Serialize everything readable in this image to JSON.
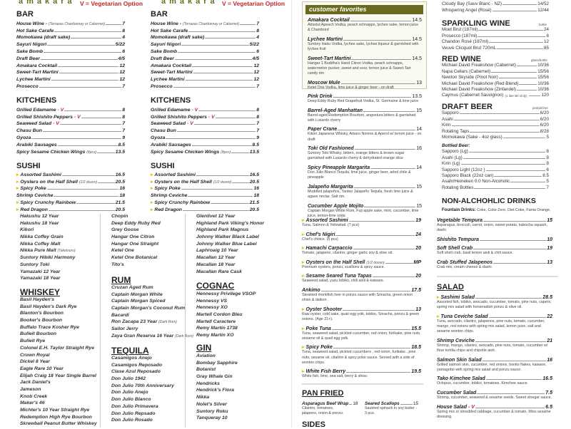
{
  "brand": {
    "logo": "amakara",
    "veg_note": "V = Vegetarian Option"
  },
  "bar": {
    "title": "BAR",
    "items": [
      {
        "name": "House Wine -",
        "note": "(Terrazas Chardonnay or Cabernet)",
        "price": "7"
      },
      {
        "name": "Hot Sake Carafe",
        "price": "8"
      },
      {
        "name": "Momokawa (draft sake)",
        "price": "4"
      },
      {
        "name": "Sayuri Nigori",
        "price": "5/22"
      },
      {
        "name": "Sake Bomb",
        "price": "6"
      },
      {
        "name": "Draft Beer",
        "price": "4/5"
      },
      {
        "name": "Amakara Cocktail",
        "price": "12"
      },
      {
        "name": "Sweet-Tart Martini",
        "price": "12"
      },
      {
        "name": "Lychee Martini",
        "price": "12"
      },
      {
        "name": "Prosecco",
        "price": "7"
      }
    ]
  },
  "kitchens": {
    "title": "KITCHENS",
    "items": [
      {
        "name": "Grilled Edamame",
        "v": "- V",
        "price": "8"
      },
      {
        "name": "Grilled Shishito Peppers",
        "v": "- V",
        "price": "8"
      },
      {
        "name": "Seaweed Salad",
        "v": "- V",
        "price": "7"
      },
      {
        "name": "Chasu Bun",
        "price": "7"
      },
      {
        "name": "Gyoza",
        "price": "9"
      },
      {
        "name": "Arabiki Sausages",
        "price": "8.5"
      },
      {
        "name": "Spicy Sesame Chicken Wings",
        "note": "(8pcs)",
        "price": "13.5"
      }
    ]
  },
  "sushi": {
    "title": "SUSHI",
    "items": [
      {
        "name": "Assorted Sashimi",
        "mark": true,
        "price": "16.5"
      },
      {
        "name": "Oysters on the Half Shell",
        "note": "(1/2 dozen)",
        "mark": true,
        "price": "20.5"
      },
      {
        "name": "Spicy Poke",
        "mark": true,
        "price": "16"
      },
      {
        "name": "Shrimp Ceviche",
        "price": "18"
      },
      {
        "name": "Spicy Crunchy Rainbow",
        "mark": true,
        "price": "21.5"
      },
      {
        "name": "Red Dragon",
        "mark": true,
        "price": "20.5"
      }
    ]
  },
  "japanese_whisky": [
    "Hakushu 12 Year",
    "Hakushu 18 Year",
    "Kikori",
    "Nikka Coffey Grain",
    "Nikka Coffey Malt",
    {
      "name": "Nikka Pure Malt",
      "note": "(Taketsuru)"
    },
    "Suntory Hibiki Harmony",
    "Suntory Toki",
    "Yamazaki 12 Year",
    "Yamazaki 18 Year"
  ],
  "whiskey": {
    "title": "WHISKEY",
    "items": [
      "Basil Hayden's",
      "Basil Hayden's Dark Rye",
      "Blanton's Bourbon",
      "Booker's Bourbon",
      "Buffalo Trace Kosher Rye",
      "Bulleit Bourbon",
      "Bulleit Rye",
      "Colonel E.H. Taylor Straight Rye",
      "Crown Royal",
      "Dickel 8 Year",
      "Eagle Rare 10 Year",
      "Elijah Craig 18 Year Single Barrel",
      "Jack Daniel's",
      "Jameson",
      "Knob Creek",
      "Maker's 46",
      "Michter's 10 Year Straight Rye",
      "Redemption High Rye Bourbon",
      "Skrewball Peanut Butter Whiskey"
    ]
  },
  "vodka": [
    "Chopin",
    "Deep Eddy Ruby Red",
    "Grey Goose",
    "Hangar One Citron",
    "Hangar One Straight",
    "Ketel One",
    "Ketel One Botanical",
    "Tito's"
  ],
  "rum": {
    "title": "RUM",
    "items": [
      "Cruzan Aged Rum",
      "Captain Morgan White",
      "Captain Morgan Spiced",
      "Captain Morgan's Coconut Rum",
      "Bacardi",
      {
        "name": "Ron Zacapa 23 Year",
        "note": "(Dark Rum)"
      },
      "Sailor Jerry",
      {
        "name": "Zaya Gran Reserva 16 Year",
        "note": "(Dark Rum)"
      }
    ]
  },
  "tequila": {
    "title": "TEQUILA",
    "items": [
      "Casamigos Anejo",
      "Casamigos Reposado",
      "Clase Azul Reposado",
      "Don Julio 1942",
      "Don Julio 70th Anniversary",
      "Don Julio Anejo",
      "Don Julio Blanco",
      "Don Julio Primavera",
      "Don Julio Repsado",
      "Don Julio Rosado"
    ]
  },
  "scotch": [
    "Glenlivet 12 Year",
    "Highland Park Viking's Honor",
    "Highland Park Magnus",
    "Johnny Walker Black Label",
    "Johnny Walker Blue Label",
    "Laphroaig 10 Year",
    "Macallan 12 Year",
    "Macallan 18 Year",
    "Macallan Rare Cask"
  ],
  "cognac": {
    "title": "COGNAC",
    "items": [
      "Hennessy Privilege VSOP",
      "Hennessy VS",
      "Hennessy XO",
      "Martell Cordon Bleu",
      "Martell Caractere",
      "Remy Martin 1738",
      "Remy Martin XO"
    ]
  },
  "gin": {
    "title": "GIN",
    "items": [
      "Aviation",
      "Bombay Sapphire",
      "Botanist",
      "Gray Whale Gin",
      "Hendricks",
      "Hendrick's Flora",
      "Nikka",
      "Nolet's Silver",
      "Suntory Roku",
      "Tanqueray 10"
    ]
  },
  "customer_favorites": {
    "title": "customer favorites",
    "items": [
      {
        "name": "Amakara Cocktail",
        "price": "14.5",
        "desc": "Absolut Apeach Vodka, peach schnapps, lychee sake, lemon juice & Chambord"
      },
      {
        "name": "Lychee Martini",
        "price": "14.5",
        "desc": "Suntory Haku Vodka, lychee sake, lychee liqueur & garnished with lychee fruit"
      },
      {
        "name": "Sweet-Tart Martini",
        "price": "14.5",
        "desc": "Hangar 1 Buddha's Hand Citron Vodka, peach schnapps, watermelon pucker, sweet and sour, lemon juice & Sweet-Tart candy rim"
      },
      {
        "name": "Moscow Mule",
        "price": "13",
        "desc": "Ketel One Vodka, lime juice & ginger beer - on draft"
      }
    ]
  },
  "cocktails": [
    {
      "name": "Pink Drink",
      "price": "13.5",
      "desc": "Deep Eddy Ruby Red Grapefruit Vodka, St. Germaine & lime juice"
    },
    {
      "name": "Barrel-Aged Manhattan",
      "price": "15",
      "desc": "Barrel-aged Redemption Bourbon, angostura bitters & garnished with Luxardo cherry"
    },
    {
      "name": "Paper Crane",
      "price": "14",
      "desc": "Kikori Japanese Whisky, Amaro Nonino & Aperol w/ lemon juice - on draft"
    },
    {
      "name": "Toki Old Fashioned",
      "price": "16",
      "desc": "Suntory Toki Whisky, bitters, orange bitters & brown sugar garnished with Luxardo cherry & dehydrated orange slice"
    },
    {
      "name": "Spicy Pineapple Margarita",
      "price": "14",
      "desc": "Don Julio Blanco Tequila, lime juice, ginger beer, arbol chile & pineapple"
    },
    {
      "name": "Jalapeño Margarita",
      "price": "15",
      "desc": "Muddled jalapeños, Tanteo Jalapeño Tequila, fresh lime juice & agave nectar. Salt rim."
    },
    {
      "name": "Cucumber Apple Mojito",
      "price": "15",
      "desc": "Captain Morgan White Rum, Fuji apple sake, mint, cucumber, lime juice, lemon-lime soda"
    }
  ],
  "sushi_plates": [
    {
      "name": "Assorted Sashimi",
      "mark": true,
      "price": "19",
      "desc": "Tuna, Salmon & Yellowtail. (7 pcs)"
    },
    {
      "name": "Chef's Nigiri",
      "mark": true,
      "price": "24",
      "desc": "Chef's choice. (5 pcs)"
    },
    {
      "name": "Hamachi Carpaccio",
      "mark": true,
      "price": "20",
      "desc": "Tomato, jalapeno, cilantro, ginger garlic soy & olive oil."
    },
    {
      "name": "Oysters on the Half Shell",
      "note": "(1/2 dozen)",
      "mark": true,
      "price": "MP",
      "desc": "Premium oysters, ponzu, scallions & spicy sauce."
    },
    {
      "name": "Sesame Seared Tuna Tapas",
      "mark": true,
      "price": "20",
      "desc": "Seaweed salad, yuzu tobiko, chili aioli & kaiware."
    },
    {
      "name": "Ankimo",
      "price": "17.5",
      "desc": "Steamed monkfish liver in ponzu sauce with Sriracha, green onion shiso & daikon."
    },
    {
      "name": "Oyster Shooter",
      "mark": true,
      "price": "13",
      "desc": "Raw oyster, cold sake, quail egg yolk, tobiko, Sriracha, ponzu & green onions. (Age 21+)."
    },
    {
      "name": "Poke Tuna",
      "mark": true,
      "price": "15.5",
      "desc": "Tuna, seaweed salad, pickled cucumber, red onion, furikake, pine nuts, sesame oil & quail egg yolk."
    },
    {
      "name": "Spicy Poke",
      "mark": true,
      "price": "18.5",
      "desc": "Tuna, seaweed salad, pickled cucumbers , red onion, furikake , pine nuts, sesame oil, cilantro & spicy poke sauce. Served with a side of wonton chips."
    },
    {
      "name": "White Fish Berry",
      "mark": true,
      "price": "19.5",
      "desc": "White fish, lime, sea salt, berry & shiso."
    }
  ],
  "pan_fried": {
    "title": "PAN FRIED",
    "items": [
      {
        "name": "Asparagus Beef Wrap",
        "price": "18",
        "desc": "Cilantro, tomatoes, jalapeno, onion & ponzu."
      },
      {
        "name": "Seared Scallops",
        "price": "15",
        "desc": "Sautéed spinach in soy butter - 3 pcs."
      }
    ]
  },
  "sides": {
    "title": "SIDES"
  },
  "white_wine": [
    {
      "name": "Cloudy Bay (Sauv Blanc - NZ)",
      "price": "14/52"
    },
    {
      "name": "Whispering Angel (Rosé)",
      "price": "12/44"
    }
  ],
  "sparkling": {
    "title": "SPARKLING WINE",
    "unit": "bottle",
    "items": [
      {
        "name": "Moet Brut (187ml)",
        "price": "24"
      },
      {
        "name": "Prosecco (187ml)",
        "price": "8"
      },
      {
        "name": "Chandon Rosé (187ml)",
        "price": "12"
      },
      {
        "name": "Veuve Clicquot Brut 720mL",
        "price": "85"
      }
    ]
  },
  "red_wine": {
    "title": "RED WINE",
    "unit": "glass/bottle",
    "items": [
      {
        "name": "Michael David Freakshow (Cabernet)",
        "price": "10/36"
      },
      {
        "name": "Napa Cellars (Cabernet)",
        "price": "15/56"
      },
      {
        "name": "Newton Skyside (Pinot Noir)",
        "price": "15/56"
      },
      {
        "name": "Michael David Freakshow (Red Blend)",
        "price": "10/36"
      },
      {
        "name": "Michael David Freakshow (Zinfandel)",
        "price": "10/36"
      },
      {
        "name": "Caymus (Cabernet Sauvignon)",
        "note": "(1 liter Btl Only)",
        "price": "120"
      }
    ]
  },
  "draft_beer": {
    "title": "DRAFT BEER",
    "unit": "pint/pitcher",
    "items": [
      {
        "name": "Sapporo",
        "price": "6/20"
      },
      {
        "name": "Asahi",
        "price": "6/20"
      },
      {
        "name": "Kirin",
        "price": "6/20"
      },
      {
        "name": "Rotating Taps",
        "price": "8/28"
      },
      {
        "name": "Momokawa (Sake - 4oz glass)",
        "price": "5"
      }
    ],
    "bottled_label": "Bottled Beer:",
    "bottled": [
      {
        "name": "Sapporo (Lg)",
        "price": "8"
      },
      {
        "name": "Asahi (Lg)",
        "price": "8"
      },
      {
        "name": "Kirin (Lg)",
        "price": "8"
      },
      {
        "name": "Sapporo Light (12oz )",
        "price": "6"
      },
      {
        "name": "Sapporo Black (22oz can)",
        "price": "8.5"
      },
      {
        "name": "Asahi/Heineken 0.0 Non-Alcoholic",
        "price": "5"
      },
      {
        "name": "Rotating Bottles",
        "price": "7"
      }
    ]
  },
  "non_alcoholic": {
    "title": "NON-ALCHOHLIC DRINKS",
    "fountain_label": "Fountain Drinks:",
    "fountain": "Coke, Coke Zero, Diet Coke, Fanta Orange,"
  },
  "tempura": [
    {
      "name": "Vegetable Tempura",
      "price": "15",
      "desc": "Asparagus, broccoli, carrot, onion, sweet potato, kabocha squash, dashi."
    },
    {
      "name": "Shishito Tempura",
      "price": "10"
    },
    {
      "name": "Soft Shell Crab",
      "price": "19",
      "desc": "Soft shell crab, basil lemon aioli & chili sauce."
    },
    {
      "name": "Crab Stuffed Jalapenos",
      "price": "13",
      "desc": "Crab mix, cream cheese & dashi."
    }
  ],
  "salad": {
    "title": "SALAD",
    "items": [
      {
        "name": "Sashimi Salad",
        "mark": true,
        "price": "28.5",
        "desc": "Assorted fish, tobiko, avocado, cucumber, tomato, pine nuts, capers, spring mix salad with horseradish ponzu & olive oil."
      },
      {
        "name": "Tuna Ceviche Salad",
        "mark": true,
        "price": "22",
        "desc": "Tuna, avocado, cilantro, jalapenos, pine nuts, tomato, cucumber, mango, red onions with spring mix salad, lemon juice, salt and sesame wonton chips."
      },
      {
        "name": "Shrimp Ceviche",
        "price": "21",
        "desc": "Shrimp, mango, cilantro, avocado, pine nuts, tomato, cucumber w/ flour tortilla chips and chipotle aioli."
      },
      {
        "name": "Salmon Skin Salad",
        "price": "16",
        "desc": "Grilled salmon skin, cucumber, red onions, bonito flakes, kaiware, yamagobo with spring mix salad and ponzu sauce."
      },
      {
        "name": "Tako Kimchee Salad",
        "price": "16.5",
        "desc": "Octopus, cucumber, tobiko, tomatoes. Kimchee sauce."
      },
      {
        "name": "Cucumber Salad",
        "price": "7.5",
        "desc": "Shrimp, cucumber, seaweed & sesame seeds. Sweet vinegar sauce."
      },
      {
        "name": "House Salad",
        "v": "- V",
        "price": "6.5",
        "desc": "Spring mix or shredded cabbage, cucumber & tomato. Miso sesame dressing."
      }
    ]
  },
  "colors": {
    "olive": "#6b6a1e",
    "veg_red": "#c0282d",
    "marker_yellow": "#e8c21a"
  }
}
